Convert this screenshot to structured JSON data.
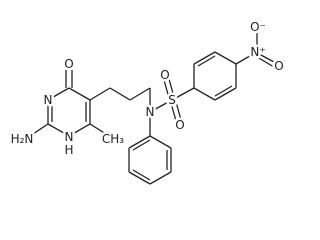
{
  "atoms": [
    {
      "label": "O"
    },
    {
      "label": "N"
    },
    {
      "label": "H₂N"
    },
    {
      "label": "N"
    },
    {
      "label": "H"
    },
    {
      "label": "CH₃"
    },
    {
      "label": "N"
    },
    {
      "label": "S"
    },
    {
      "label": "O"
    },
    {
      "label": "O"
    },
    {
      "label": "N⁺"
    },
    {
      "label": "O⁻"
    },
    {
      "label": "O"
    }
  ]
}
